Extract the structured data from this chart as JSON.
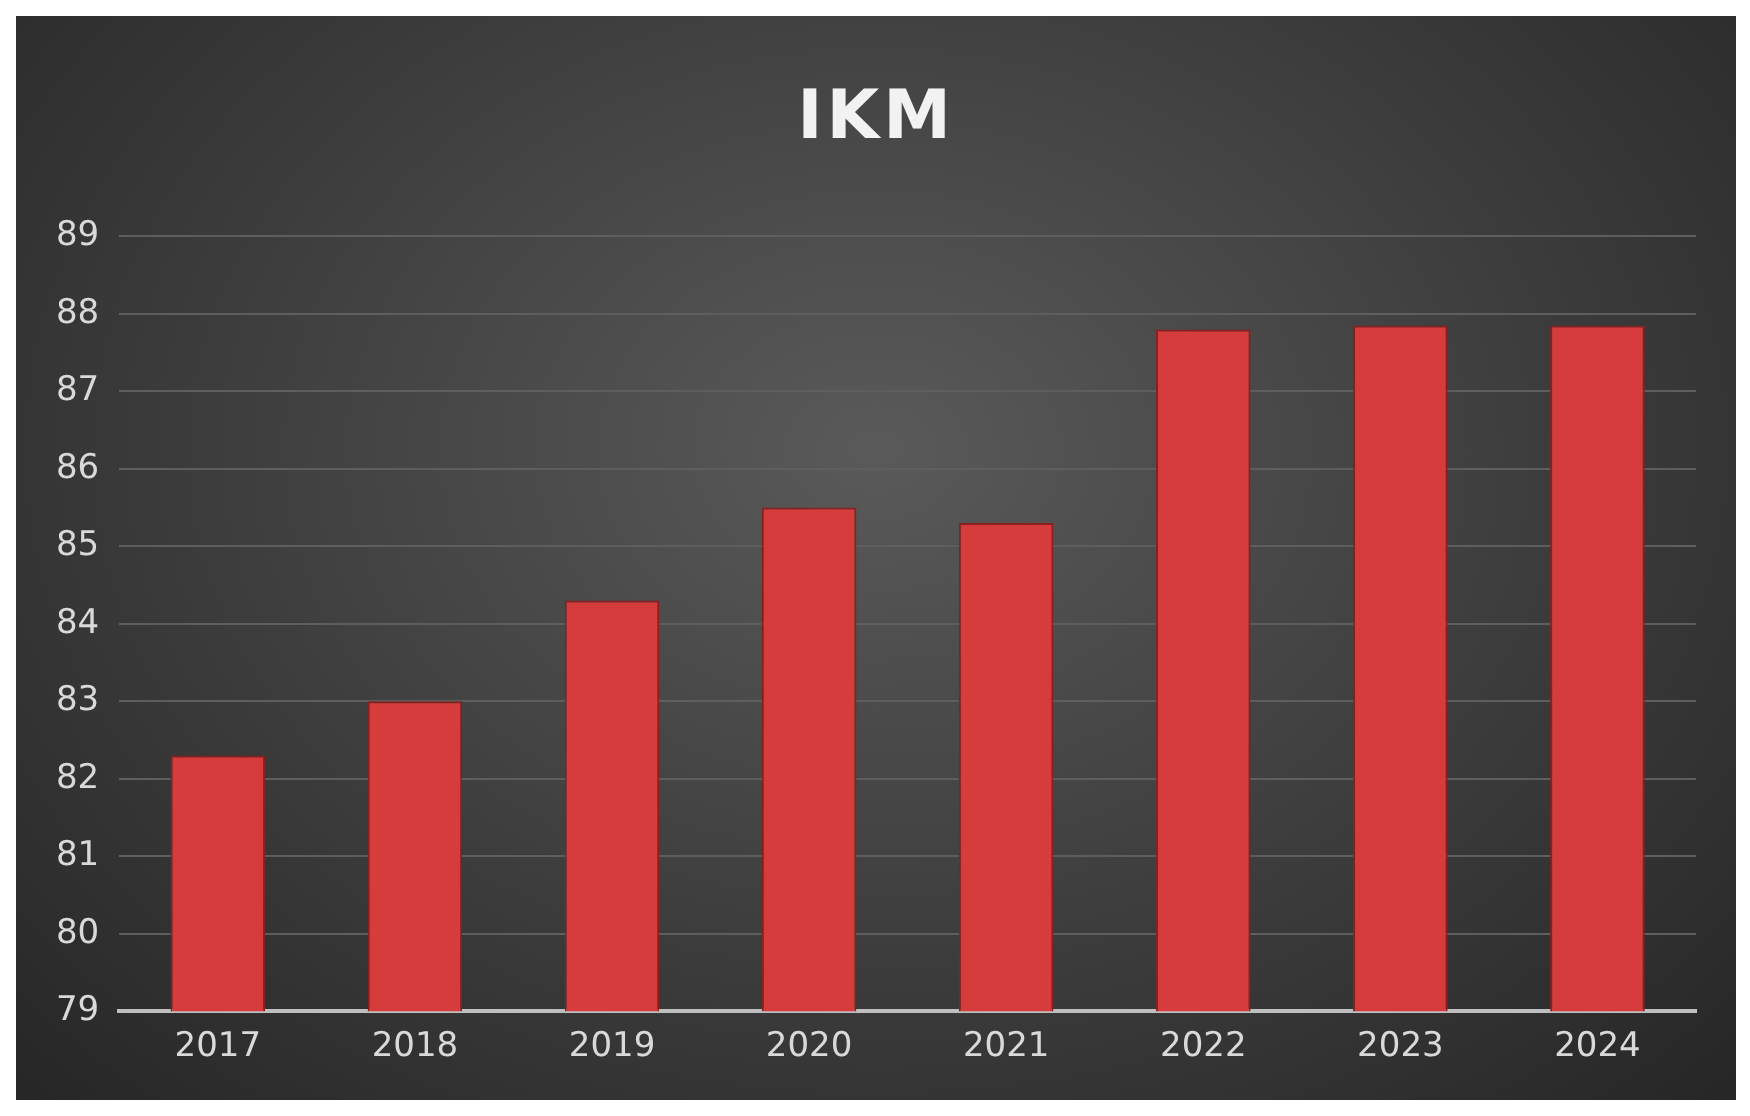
{
  "chart_data": {
    "type": "bar",
    "title": "IKM",
    "categories": [
      "2017",
      "2018",
      "2019",
      "2020",
      "2021",
      "2022",
      "2023",
      "2024"
    ],
    "values": [
      82.3,
      83.0,
      84.3,
      85.5,
      85.3,
      87.8,
      87.85,
      87.85
    ],
    "color": "#d63c3c",
    "ylim": [
      79,
      89
    ],
    "yticks": [
      79,
      80,
      81,
      82,
      83,
      84,
      85,
      86,
      87,
      88,
      89
    ],
    "grid": "y",
    "legend": false
  }
}
